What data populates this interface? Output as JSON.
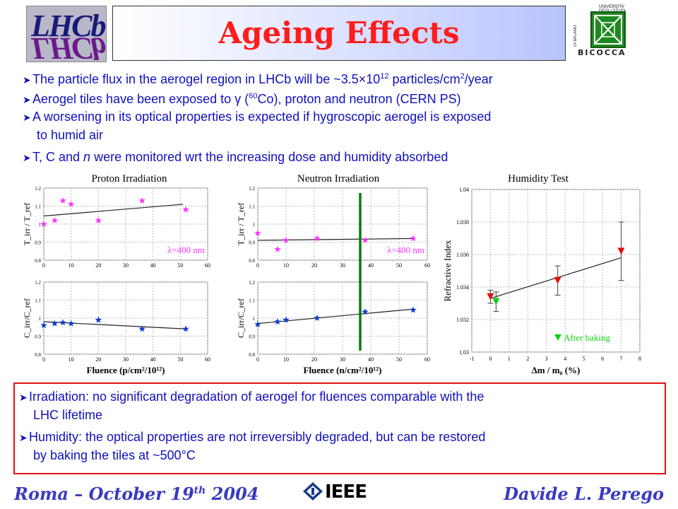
{
  "header": {
    "title": "Ageing Effects",
    "left_logo_text": "LHCb",
    "right_logo": {
      "arc_top": "UNIVERSITA' DEGLI STUDI",
      "arc_side": "DI MILANO",
      "name": "BICOCCA"
    }
  },
  "bullets": [
    {
      "text": "The particle flux in the aerogel region in LHCb will be ~3.5×10",
      "sup": "12",
      "tail": " particles/cm",
      "sup2": "2",
      "tail2": "/year"
    },
    {
      "text": "Aerogel tiles have been exposed to γ (",
      "sup": "60",
      "tail": "Co), proton and neutron (CERN PS)"
    },
    {
      "text": "A worsening in its optical properties is expected if hygroscopic aerogel is exposed",
      "line2": "to humid air"
    },
    {
      "text": "T, C and ",
      "italic": "n",
      "tail": " were monitored wrt the increasing dose and humidity absorbed"
    }
  ],
  "conclusions": [
    {
      "text": "Irradiation: no significant degradation of aerogel for fluences comparable with the",
      "line2": "LHC lifetime"
    },
    {
      "text": "Humidity: the optical properties are not irreversibly degraded, but can be restored",
      "line2": "by baking the tiles at ~500°C"
    }
  ],
  "footer": {
    "left": "Roma – October 19",
    "left_sup": "th",
    "left_tail": " 2004",
    "center": "IEEE",
    "right": "Davide L. Perego"
  },
  "colors": {
    "bullet_text": "#1010c0",
    "title": "#ff1c1c",
    "box_border": "#e01010",
    "magenta": "#ff33ff",
    "blue_star": "#0a3ad0",
    "green_line": "#0a7a0a",
    "red_marker": "#e01010",
    "green_marker": "#10d010"
  },
  "chart_data": [
    {
      "type": "scatter",
      "title": "Proton Irradiation",
      "ylabel": "T_irr / T_ref",
      "xlim": [
        0,
        60
      ],
      "ylim": [
        0.8,
        1.2
      ],
      "xticks": [
        "0",
        "10",
        "20",
        "30",
        "40",
        "50",
        "60"
      ],
      "yticks": [
        "0.8",
        "0.9",
        "1",
        "1.1",
        "1.2"
      ],
      "annotation": "λ=400 nm",
      "points": [
        [
          0,
          1.0
        ],
        [
          4,
          1.02
        ],
        [
          7,
          1.13
        ],
        [
          10,
          1.11
        ],
        [
          20,
          1.02
        ],
        [
          36,
          1.13
        ],
        [
          52,
          1.08
        ]
      ],
      "fit": [
        [
          0,
          1.045
        ],
        [
          51,
          1.11
        ]
      ]
    },
    {
      "type": "scatter",
      "title": "",
      "ylabel": "C_irr/C_ref",
      "xlabel": "Fluence (p/cm²/10¹²)",
      "xlim": [
        0,
        60
      ],
      "ylim": [
        0.8,
        1.2
      ],
      "xticks": [
        "0",
        "10",
        "20",
        "30",
        "40",
        "50",
        "60"
      ],
      "yticks": [
        "0.8",
        "0.9",
        "1",
        "1.1",
        "1.2"
      ],
      "points": [
        [
          0,
          0.96
        ],
        [
          4,
          0.97
        ],
        [
          7,
          0.975
        ],
        [
          10,
          0.97
        ],
        [
          20,
          0.99
        ],
        [
          36,
          0.94
        ],
        [
          52,
          0.94
        ]
      ],
      "fit": [
        [
          0,
          0.98
        ],
        [
          52,
          0.94
        ]
      ]
    },
    {
      "type": "scatter",
      "title": "Neutron Irradiation",
      "ylabel": "T_irr / T_ref",
      "xlim": [
        0,
        60
      ],
      "ylim": [
        0.8,
        1.2
      ],
      "xticks": [
        "0",
        "10",
        "20",
        "30",
        "40",
        "50",
        "60"
      ],
      "yticks": [
        "0.8",
        "0.9",
        "1",
        "1.1",
        "1.2"
      ],
      "annotation": "λ=400 nm",
      "points": [
        [
          0,
          0.95
        ],
        [
          7,
          0.86
        ],
        [
          10,
          0.91
        ],
        [
          21,
          0.92
        ],
        [
          38,
          0.91
        ],
        [
          55,
          0.92
        ]
      ],
      "fit": [
        [
          0,
          0.91
        ],
        [
          55,
          0.92
        ]
      ]
    },
    {
      "type": "scatter",
      "title": "",
      "ylabel": "C_irr/C_ref",
      "xlabel": "Fluence (n/cm²/10¹²)",
      "xlim": [
        0,
        60
      ],
      "ylim": [
        0.8,
        1.2
      ],
      "xticks": [
        "0",
        "10",
        "20",
        "30",
        "40",
        "50",
        "60"
      ],
      "yticks": [
        "0.8",
        "0.9",
        "1",
        "1.1",
        "1.2"
      ],
      "points": [
        [
          0,
          0.965
        ],
        [
          7,
          0.98
        ],
        [
          10,
          0.99
        ],
        [
          21,
          1.0
        ],
        [
          38,
          1.035
        ],
        [
          55,
          1.045
        ]
      ],
      "fit": [
        [
          0,
          0.97
        ],
        [
          55,
          1.05
        ]
      ]
    },
    {
      "type": "scatter",
      "title": "Humidity Test",
      "ylabel": "Refractive Index",
      "xlabel": "Δm / m₀ (%)",
      "xlim": [
        -1,
        8
      ],
      "ylim": [
        1.03,
        1.04
      ],
      "xticks": [
        "-1",
        "0",
        "1",
        "2",
        "3",
        "4",
        "5",
        "6",
        "7",
        "8"
      ],
      "yticks": [
        "1.03",
        "1.032",
        "1.034",
        "1.036",
        "1.038",
        "1.04"
      ],
      "legend": "After baking",
      "points": [
        {
          "x": 0,
          "y": 1.0334,
          "err": 0.0004,
          "group": "before"
        },
        {
          "x": 3.6,
          "y": 1.0344,
          "err": 0.0009,
          "group": "before"
        },
        {
          "x": 7,
          "y": 1.0362,
          "err": 0.0018,
          "group": "before"
        },
        {
          "x": 0.3,
          "y": 1.0331,
          "err": 0.0006,
          "group": "after"
        }
      ],
      "fit": [
        [
          0,
          1.0333
        ],
        [
          7,
          1.0358
        ]
      ]
    }
  ]
}
